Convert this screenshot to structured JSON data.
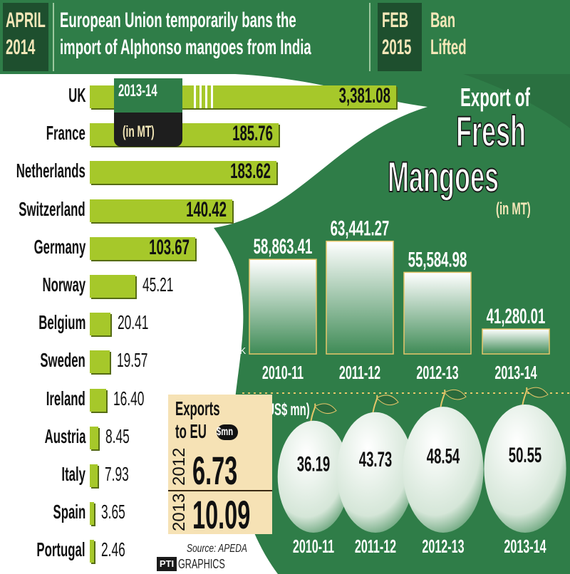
{
  "banner": {
    "left_date": [
      "APRIL",
      "2014"
    ],
    "left_text": [
      "European Union temporarily bans the",
      "import of Alphonso mangoes from India"
    ],
    "right_date": [
      "FEB",
      "2015"
    ],
    "right_text": [
      "Ban",
      "Lifted"
    ]
  },
  "title": {
    "line1": "Export of",
    "line2": "Fresh",
    "line3": "Mangoes",
    "unit": "(in MT)"
  },
  "country_box": {
    "year": "2013-14",
    "unit": "(in MT)"
  },
  "eu_box": {
    "title_line1": "Exports",
    "title_line2": "to EU",
    "unit": "$mn",
    "rows": [
      {
        "year": "2012",
        "value": "6.73"
      },
      {
        "year": "2013",
        "value": "10.09"
      }
    ]
  },
  "colors": {
    "dark_green": "#2f7d48",
    "darker_green": "#1e4f2e",
    "lime_bar": "#a6c82a",
    "cream": "#f4e7b8",
    "yellow_box": "#f6e2b5"
  },
  "usd_label": "(in US$ mn)",
  "mt_axis_label": "50K",
  "footer": {
    "source": "Source: APEDA",
    "logo": "PTI",
    "credit": "GRAPHICS"
  },
  "chart_data": [
    {
      "type": "bar",
      "title": "2013-14 (in MT)",
      "orientation": "horizontal",
      "categories": [
        "UK",
        "France",
        "Netherlands",
        "Switzerland",
        "Germany",
        "Norway",
        "Belgium",
        "Sweden",
        "Ireland",
        "Austria",
        "Italy",
        "Spain",
        "Portugal"
      ],
      "values": [
        3381.08,
        185.76,
        183.62,
        140.42,
        103.67,
        45.21,
        20.41,
        19.57,
        16.4,
        8.45,
        7.93,
        3.65,
        2.46
      ],
      "labels": [
        "3,381.08",
        "185.76",
        "183.62",
        "140.42",
        "103.67",
        "45.21",
        "20.41",
        "19.57",
        "16.40",
        "8.45",
        "7.93",
        "3.65",
        "2.46"
      ],
      "axis_break": true
    },
    {
      "type": "bar",
      "title": "Export of Fresh Mangoes (in MT)",
      "categories": [
        "2010-11",
        "2011-12",
        "2012-13",
        "2013-14"
      ],
      "values": [
        58863.41,
        63441.27,
        55584.98,
        41280.01
      ],
      "labels": [
        "58,863.41",
        "63,441.27",
        "55,584.98",
        "41,280.01"
      ],
      "ylim": [
        35000,
        65000
      ]
    },
    {
      "type": "bar",
      "title": "(in US$ mn)",
      "categories": [
        "2010-11",
        "2011-12",
        "2012-13",
        "2013-14"
      ],
      "values": [
        36.19,
        43.73,
        48.54,
        50.55
      ],
      "labels": [
        "36.19",
        "43.73",
        "48.54",
        "50.55"
      ]
    }
  ]
}
